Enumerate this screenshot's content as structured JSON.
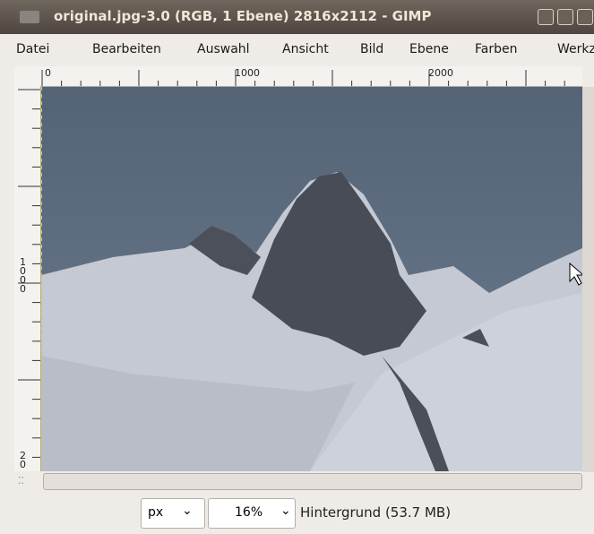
{
  "window": {
    "title": "original.jpg-3.0 (RGB, 1 Ebene) 2816x2112 - GIMP"
  },
  "menu": [
    "Datei",
    "Bearbeiten",
    "Auswahl",
    "Ansicht",
    "Bild",
    "Ebene",
    "Farben",
    "Werkz"
  ],
  "horizontal_ruler": {
    "labels": [
      "0",
      "1000",
      "2000"
    ]
  },
  "vertical_ruler": {
    "labels": [
      "1000",
      "20"
    ]
  },
  "status_bar": {
    "unit": "px",
    "zoom": "16%",
    "layer_info": "Hintergrund (53.7 MB)"
  }
}
